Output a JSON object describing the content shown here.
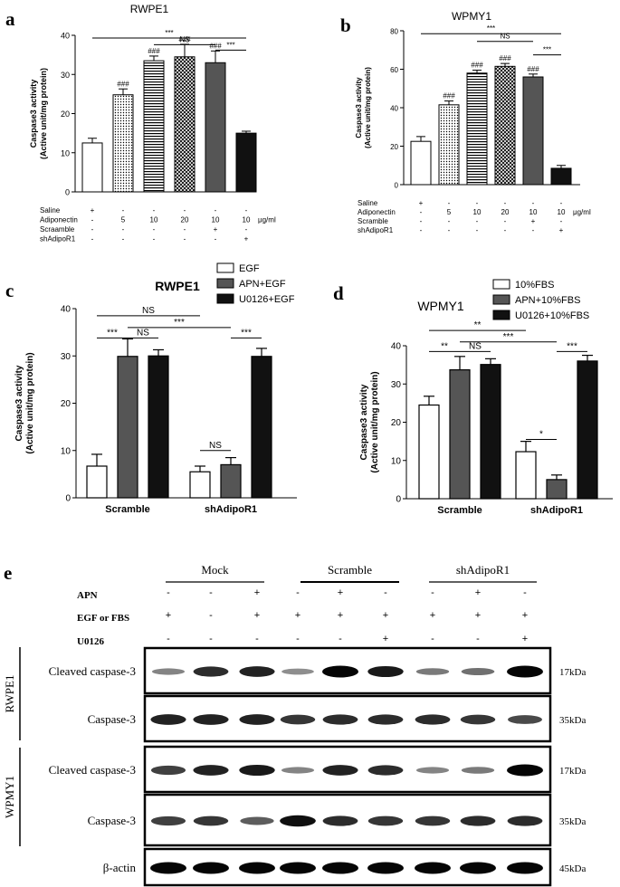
{
  "panels": {
    "a": {
      "letter": "a",
      "title": "RWPE1"
    },
    "b": {
      "letter": "b",
      "title": "WPMY1"
    },
    "c": {
      "letter": "c",
      "title": "RWPE1"
    },
    "d": {
      "letter": "d",
      "title": "WPMY1"
    },
    "e": {
      "letter": "e"
    }
  },
  "chart_data": [
    {
      "id": "a",
      "type": "bar",
      "title": "RWPE1",
      "ylabel": "Caspase3 activity\n(Active unit/mg protein)",
      "ylim": [
        0,
        40
      ],
      "yticks": [
        0,
        10,
        20,
        30,
        40
      ],
      "values": [
        12.5,
        24.8,
        33.5,
        34.5,
        33.0,
        15.0
      ],
      "errors": [
        1.2,
        1.5,
        1.2,
        3.2,
        3.0,
        0.5
      ],
      "fills": [
        "white",
        "dots",
        "hlines",
        "cross",
        "darkgray",
        "black"
      ],
      "bar_labels": [
        "",
        "###",
        "###",
        "###",
        "###",
        ""
      ],
      "brackets": [
        {
          "from": 0,
          "to": 5,
          "label": "***",
          "y": 39.3
        },
        {
          "from": 2,
          "to": 4,
          "label": "NS",
          "y": 37.6
        },
        {
          "from": 4,
          "to": 5,
          "label": "***",
          "y": 36.2
        }
      ],
      "condition_table": [
        {
          "name": "Saline",
          "cells": [
            "+",
            "-",
            "-",
            "-",
            "-",
            "-"
          ],
          "unit": ""
        },
        {
          "name": "Adiponectin",
          "cells": [
            "-",
            "5",
            "10",
            "20",
            "10",
            "10"
          ],
          "unit": "μg/ml"
        },
        {
          "name": "Scraamble",
          "cells": [
            "-",
            "-",
            "-",
            "-",
            "+",
            "-"
          ],
          "unit": ""
        },
        {
          "name": "shAdipoR1",
          "cells": [
            "-",
            "-",
            "-",
            "-",
            "-",
            "+"
          ],
          "unit": ""
        }
      ]
    },
    {
      "id": "b",
      "type": "bar",
      "title": "WPMY1",
      "ylabel": "Caspase3 activity\n(Active unit/mg protein)",
      "ylim": [
        0,
        80
      ],
      "yticks": [
        0,
        20,
        40,
        60,
        80
      ],
      "values": [
        22.5,
        41.5,
        58.0,
        61.5,
        56.0,
        8.5
      ],
      "errors": [
        2.5,
        2.0,
        1.5,
        1.5,
        1.5,
        1.5
      ],
      "fills": [
        "white",
        "dots",
        "hlines",
        "cross",
        "darkgray",
        "black"
      ],
      "bar_labels": [
        "",
        "###",
        "###",
        "###",
        "###",
        ""
      ],
      "brackets": [
        {
          "from": 0,
          "to": 5,
          "label": "***",
          "y": 78.5
        },
        {
          "from": 2,
          "to": 4,
          "label": "NS",
          "y": 74.5
        },
        {
          "from": 4,
          "to": 5,
          "label": "***",
          "y": 67.5
        }
      ],
      "condition_table": [
        {
          "name": "Saline",
          "cells": [
            "+",
            "-",
            "-",
            "-",
            "-",
            "-"
          ],
          "unit": ""
        },
        {
          "name": "Adiponectin",
          "cells": [
            "-",
            "5",
            "10",
            "20",
            "10",
            "10"
          ],
          "unit": "μg/ml"
        },
        {
          "name": "Scramble",
          "cells": [
            "-",
            "-",
            "-",
            "-",
            "+",
            "-"
          ],
          "unit": ""
        },
        {
          "name": "shAdipoR1",
          "cells": [
            "-",
            "-",
            "-",
            "-",
            "-",
            "+"
          ],
          "unit": ""
        }
      ]
    },
    {
      "id": "c",
      "type": "bar",
      "title": "RWPE1",
      "ylabel": "Caspase3 activity\n(Active unit/mg protein)",
      "ylim": [
        0,
        40
      ],
      "yticks": [
        0,
        10,
        20,
        30,
        40
      ],
      "categories": [
        "Scramble",
        "shAdipoR1"
      ],
      "legend": [
        "EGF",
        "APN+EGF",
        "U0126+EGF"
      ],
      "series": [
        {
          "name": "EGF",
          "fill": "white",
          "values": [
            6.7,
            5.5
          ],
          "errors": [
            2.5,
            1.2
          ]
        },
        {
          "name": "APN+EGF",
          "fill": "darkgray",
          "values": [
            29.9,
            7.0
          ],
          "errors": [
            3.7,
            1.5
          ]
        },
        {
          "name": "U0126+EGF",
          "fill": "black",
          "values": [
            30.0,
            29.9
          ],
          "errors": [
            1.3,
            1.7
          ]
        }
      ],
      "brackets": [
        {
          "from": [
            0,
            0
          ],
          "to": [
            1,
            0
          ],
          "label": "NS",
          "y": 38.5
        },
        {
          "from": [
            0,
            0
          ],
          "to": [
            0,
            1
          ],
          "label": "***",
          "y": 38.5,
          "skip": true
        },
        {
          "from": [
            0,
            0
          ],
          "to": [
            0,
            1
          ],
          "label": "***",
          "y": 33.8
        },
        {
          "from": [
            0,
            1
          ],
          "to": [
            0,
            2
          ],
          "label": "NS",
          "y": 33.8
        },
        {
          "from": [
            0,
            1
          ],
          "to": [
            1,
            1
          ],
          "label": "***",
          "y": 36.0
        },
        {
          "from": [
            1,
            0
          ],
          "to": [
            1,
            1
          ],
          "label": "NS",
          "y": 10.0
        },
        {
          "from": [
            1,
            1
          ],
          "to": [
            1,
            2
          ],
          "label": "***",
          "y": 33.8
        }
      ]
    },
    {
      "id": "d",
      "type": "bar",
      "title": "WPMY1",
      "ylabel": "Caspase3 activity\n(Active unit/mg protein)",
      "ylim": [
        0,
        40
      ],
      "yticks": [
        0,
        10,
        20,
        30,
        40
      ],
      "categories": [
        "Scramble",
        "shAdipoR1"
      ],
      "legend": [
        "10%FBS",
        "APN+10%FBS",
        "U0126+10%FBS"
      ],
      "series": [
        {
          "name": "10%FBS",
          "fill": "white",
          "values": [
            24.5,
            12.3
          ],
          "errors": [
            2.3,
            2.7
          ]
        },
        {
          "name": "APN+10%FBS",
          "fill": "darkgray",
          "values": [
            33.7,
            5.0
          ],
          "errors": [
            3.5,
            1.2
          ]
        },
        {
          "name": "U0126+10%FBS",
          "fill": "black",
          "values": [
            35.1,
            36.0
          ],
          "errors": [
            1.5,
            1.5
          ]
        }
      ],
      "brackets": [
        {
          "from": [
            0,
            0
          ],
          "to": [
            1,
            0
          ],
          "label": "**",
          "y": 44.0
        },
        {
          "from": [
            0,
            0
          ],
          "to": [
            0,
            1
          ],
          "label": "**",
          "y": 38.5
        },
        {
          "from": [
            0,
            1
          ],
          "to": [
            0,
            2
          ],
          "label": "NS",
          "y": 38.5
        },
        {
          "from": [
            0,
            1
          ],
          "to": [
            1,
            1
          ],
          "label": "***",
          "y": 41.0
        },
        {
          "from": [
            1,
            0
          ],
          "to": [
            1,
            1
          ],
          "label": "*",
          "y": 15.5
        },
        {
          "from": [
            1,
            1
          ],
          "to": [
            1,
            2
          ],
          "label": "***",
          "y": 38.5
        }
      ]
    }
  ],
  "blot": {
    "groups": [
      "Mock",
      "Scramble",
      "shAdipoR1"
    ],
    "treatment_rows": [
      {
        "name": "APN",
        "cells": [
          "-",
          "-",
          "+",
          "-",
          "+",
          "-",
          "-",
          "+",
          "-"
        ]
      },
      {
        "name": "EGF or FBS",
        "cells": [
          "+",
          "-",
          "+",
          "+",
          "+",
          "+",
          "+",
          "+",
          "+"
        ]
      },
      {
        "name": "U0126",
        "cells": [
          "-",
          "-",
          "-",
          "-",
          "-",
          "+",
          "-",
          "-",
          "+"
        ]
      }
    ],
    "cell_groups": [
      "RWPE1",
      "WPMY1"
    ],
    "rows": [
      {
        "name": "Cleaved caspase-3",
        "kda": "17kDa",
        "intensity": [
          0.35,
          0.8,
          0.85,
          0.3,
          1.0,
          0.9,
          0.4,
          0.45,
          1.0
        ]
      },
      {
        "name": "Caspase-3",
        "kda": "35kDa",
        "intensity": [
          0.85,
          0.85,
          0.85,
          0.75,
          0.8,
          0.8,
          0.8,
          0.75,
          0.65
        ]
      },
      {
        "name": "Cleaved caspase-3",
        "kda": "17kDa",
        "intensity": [
          0.7,
          0.85,
          0.9,
          0.35,
          0.85,
          0.8,
          0.35,
          0.4,
          1.0
        ]
      },
      {
        "name": "Caspase-3",
        "kda": "35kDa",
        "intensity": [
          0.7,
          0.75,
          0.55,
          0.95,
          0.8,
          0.75,
          0.75,
          0.8,
          0.8
        ]
      },
      {
        "name": "β-actin",
        "kda": "45kDa",
        "intensity": [
          1.0,
          1.0,
          1.0,
          1.0,
          1.0,
          1.0,
          1.0,
          1.0,
          1.0
        ]
      }
    ]
  }
}
